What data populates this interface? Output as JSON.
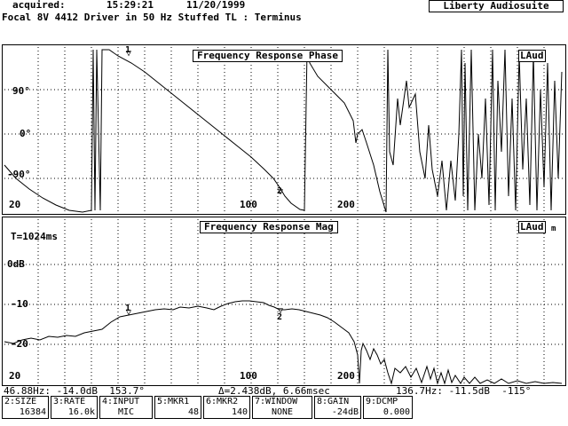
{
  "header": {
    "acquired_label": "acquired:",
    "time": "15:29:21",
    "date": "11/20/1999",
    "title": "Focal 8V 4412 Driver in 50 Hz Stuffed TL : Terminus",
    "brand": "Liberty Audiosuite"
  },
  "phase_plot": {
    "title": "Frequency Response Phase",
    "badge": "LAud",
    "y_labels": [
      "90°",
      "0°",
      "-90°"
    ],
    "x_labels": [
      "20",
      "100",
      "200"
    ],
    "marker1": "1",
    "marker2": "2"
  },
  "mag_plot": {
    "title": "Frequency Response Mag",
    "badge": "LAud",
    "badge_suffix": "m",
    "window_label": "T=1024ms",
    "y_labels": [
      "0dB",
      "-10",
      "-20"
    ],
    "x_labels": [
      "20",
      "100",
      "200"
    ],
    "marker1": "1",
    "marker2": "2"
  },
  "readout": {
    "marker1": "46.88Hz: -14.0dB  153.7°",
    "delta": "Δ=2.438dB, 6.66msec",
    "marker2": "136.7Hz: -11.5dB  -115°"
  },
  "function_keys": [
    {
      "label": "2:SIZE",
      "value": "16384"
    },
    {
      "label": "3:RATE",
      "value": "16.0k"
    },
    {
      "label": "4:INPUT",
      "value": "MIC"
    },
    {
      "label": "5:MKR1",
      "value": "48"
    },
    {
      "label": "6:MKR2",
      "value": "140"
    },
    {
      "label": "7:WINDOW",
      "value": "NONE"
    },
    {
      "label": "8:GAIN",
      "value": "-24dB"
    },
    {
      "label": "9:DCMP",
      "value": "0.000"
    }
  ]
}
